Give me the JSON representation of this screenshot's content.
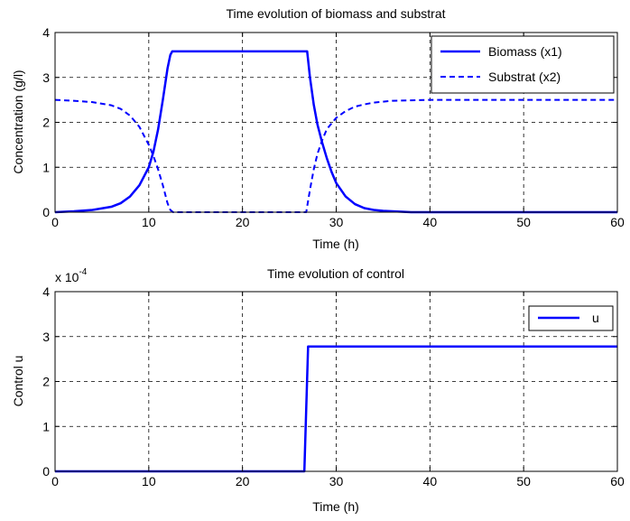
{
  "chart_data": [
    {
      "type": "line",
      "title": "Time evolution of biomass and substrat",
      "xlabel": "Time (h)",
      "ylabel": "Concentration (g/l)",
      "xlim": [
        0,
        60
      ],
      "ylim": [
        0,
        4
      ],
      "xticks": [
        0,
        10,
        20,
        30,
        40,
        50,
        60
      ],
      "yticks": [
        0,
        1,
        2,
        3,
        4
      ],
      "grid": true,
      "legend_position": "top-right",
      "series": [
        {
          "name": "Biomass (x1)",
          "style": "solid",
          "color": "#0000ff",
          "x": [
            0,
            2,
            4,
            6,
            7,
            8,
            9,
            10,
            10.5,
            11,
            11.5,
            12,
            12.3,
            12.5,
            26.9,
            27.2,
            27.6,
            28,
            28.5,
            29,
            29.5,
            30,
            31,
            32,
            33,
            34,
            35,
            36,
            38,
            40,
            50,
            60
          ],
          "y": [
            0.0,
            0.02,
            0.05,
            0.12,
            0.2,
            0.35,
            0.6,
            1.0,
            1.35,
            1.85,
            2.5,
            3.2,
            3.5,
            3.58,
            3.58,
            3.0,
            2.4,
            1.95,
            1.55,
            1.2,
            0.9,
            0.65,
            0.35,
            0.18,
            0.09,
            0.05,
            0.03,
            0.02,
            0.0,
            0.0,
            0.0,
            0.0
          ]
        },
        {
          "name": "Substrat (x2)",
          "style": "dashed",
          "color": "#0000ff",
          "x": [
            0,
            2,
            4,
            6,
            7,
            8,
            9,
            10,
            10.5,
            11,
            11.5,
            12,
            12.3,
            12.6,
            26.8,
            27.2,
            27.6,
            28,
            28.5,
            29,
            30,
            31,
            32,
            33,
            34,
            35,
            36,
            38,
            40,
            50,
            60
          ],
          "y": [
            2.5,
            2.48,
            2.45,
            2.38,
            2.3,
            2.15,
            1.9,
            1.5,
            1.25,
            0.95,
            0.6,
            0.2,
            0.05,
            0.0,
            0.0,
            0.5,
            0.95,
            1.3,
            1.6,
            1.85,
            2.1,
            2.25,
            2.35,
            2.4,
            2.44,
            2.46,
            2.48,
            2.49,
            2.5,
            2.5,
            2.5
          ]
        }
      ]
    },
    {
      "type": "line",
      "title": "Time evolution of control",
      "xlabel": "Time (h)",
      "ylabel": "Control u",
      "xlim": [
        0,
        60
      ],
      "ylim": [
        0,
        4
      ],
      "xticks": [
        0,
        10,
        20,
        30,
        40,
        50,
        60
      ],
      "yticks": [
        0,
        1,
        2,
        3,
        4
      ],
      "scale_label": "x 10",
      "scale_exponent": "-4",
      "grid": true,
      "legend_position": "top-right",
      "series": [
        {
          "name": "u",
          "style": "solid",
          "color": "#0000ff",
          "x": [
            0,
            26.6,
            27.0,
            60
          ],
          "y": [
            0,
            0,
            2.78,
            2.78
          ]
        }
      ]
    }
  ]
}
